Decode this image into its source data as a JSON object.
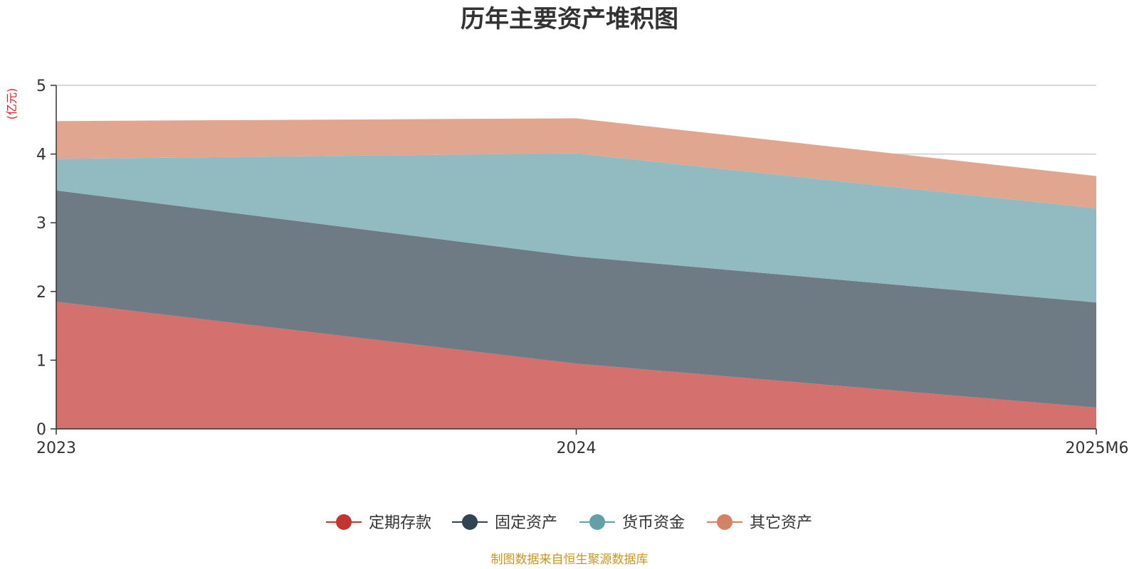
{
  "chart_data": {
    "type": "area",
    "stacked": true,
    "title": "历年主要资产堆积图",
    "ylabel": "(亿元)",
    "xlabel": "",
    "categories": [
      "2023",
      "2024",
      "2025M6"
    ],
    "ylim": [
      0,
      5
    ],
    "yticks": [
      0,
      1,
      2,
      3,
      4,
      5
    ],
    "grid": true,
    "legend_position": "bottom-center",
    "series": [
      {
        "name": "定期存款",
        "values": [
          1.85,
          0.95,
          0.31
        ],
        "color": "#c23531",
        "fill": "#d4706e"
      },
      {
        "name": "固定资产",
        "values": [
          1.62,
          1.56,
          1.53
        ],
        "color": "#2f4554",
        "fill": "#6e7b85"
      },
      {
        "name": "货币资金",
        "values": [
          0.46,
          1.5,
          1.37
        ],
        "color": "#61a0a8",
        "fill": "#92bbc1"
      },
      {
        "name": "其它资产",
        "values": [
          0.55,
          0.51,
          0.47
        ],
        "color": "#d48265",
        "fill": "#e1a68f"
      }
    ]
  },
  "footer": {
    "source": "制图数据来自恒生聚源数据库"
  }
}
